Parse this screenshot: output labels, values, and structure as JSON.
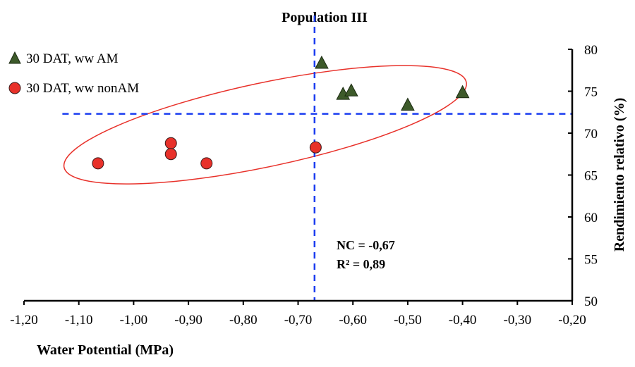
{
  "chart_data": {
    "type": "scatter",
    "title": "Population III",
    "xlabel": "Water Potential (MPa)",
    "ylabel": "Rendimiento relativo (%)",
    "xlim": [
      -1.2,
      -0.2
    ],
    "ylim": [
      50,
      80
    ],
    "x_ticks": [
      -1.2,
      -1.1,
      -1.0,
      -0.9,
      -0.8,
      -0.7,
      -0.6,
      -0.5,
      -0.4,
      -0.3,
      -0.2
    ],
    "x_tick_labels": [
      "-1,20",
      "-1,10",
      "-1,00",
      "-0,90",
      "-0,80",
      "-0,70",
      "-0,60",
      "-0,50",
      "-0,40",
      "-0,30",
      "-0,20"
    ],
    "y_ticks": [
      50,
      55,
      60,
      65,
      70,
      75,
      80
    ],
    "y_tick_labels": [
      "50",
      "55",
      "60",
      "65",
      "70",
      "75",
      "80"
    ],
    "y_axis_side": "right",
    "grid": false,
    "legend_position": "top-left",
    "series": [
      {
        "name": "30 DAT, ww AM",
        "marker": "triangle",
        "color": "#3d5a2a",
        "points": [
          {
            "x": -0.657,
            "y": 78.4
          },
          {
            "x": -0.618,
            "y": 74.7
          },
          {
            "x": -0.603,
            "y": 75.1
          },
          {
            "x": -0.5,
            "y": 73.4
          },
          {
            "x": -0.4,
            "y": 74.9
          }
        ]
      },
      {
        "name": "30 DAT, ww nonAM",
        "marker": "circle",
        "color": "#e8312a",
        "points": [
          {
            "x": -1.065,
            "y": 66.4
          },
          {
            "x": -0.932,
            "y": 68.8
          },
          {
            "x": -0.932,
            "y": 67.5
          },
          {
            "x": -0.867,
            "y": 66.4
          },
          {
            "x": -0.668,
            "y": 68.3
          }
        ]
      }
    ],
    "reference_lines": {
      "vertical_x": -0.67,
      "horizontal_y": 72.3,
      "horizontal_x_start": -1.13,
      "color": "#1a3cf0",
      "style": "dashed"
    },
    "ellipse": {
      "color": "#e8312a",
      "center": {
        "x": -0.76,
        "y": 71.0
      },
      "semi_axis_x": 0.375,
      "semi_axis_y": 5.0,
      "rotation_deg": -12
    },
    "annotations": [
      {
        "text": "NC = -0,67"
      },
      {
        "text": "R² = 0,89"
      }
    ]
  }
}
